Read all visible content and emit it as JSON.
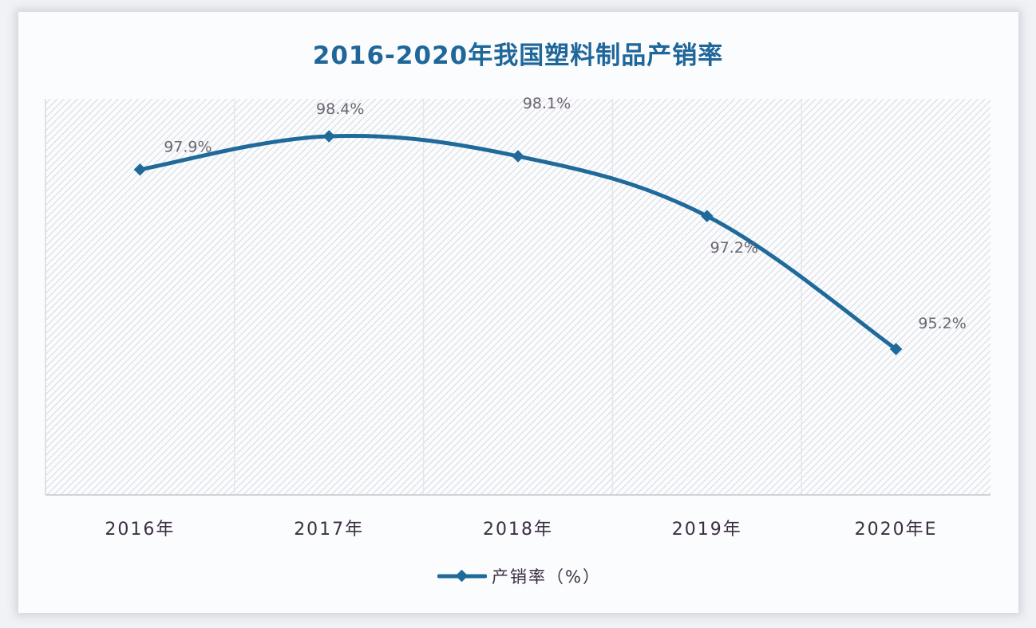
{
  "title": "2016-2020年我国塑料制品产销率",
  "legend": {
    "label": "产销率（%）",
    "color": "#1f6a9a"
  },
  "colors": {
    "line": "#1f6a9a",
    "title": "#1f6699",
    "background": "#fbfcfe",
    "hatch": "#d9dbe1"
  },
  "chart_data": {
    "type": "line",
    "title": "2016-2020年我国塑料制品产销率",
    "categories": [
      "2016年",
      "2017年",
      "2018年",
      "2019年",
      "2020年E"
    ],
    "series": [
      {
        "name": "产销率（%）",
        "values": [
          97.9,
          98.4,
          98.1,
          97.2,
          95.2
        ],
        "labels": [
          "97.9%",
          "98.4%",
          "98.1%",
          "97.2%",
          "95.2%"
        ]
      }
    ],
    "xlabel": "",
    "ylabel": "",
    "y_axis_visible": false,
    "grid": "vertical category separators",
    "smooth": true,
    "marker": "diamond",
    "legend_position": "bottom"
  }
}
